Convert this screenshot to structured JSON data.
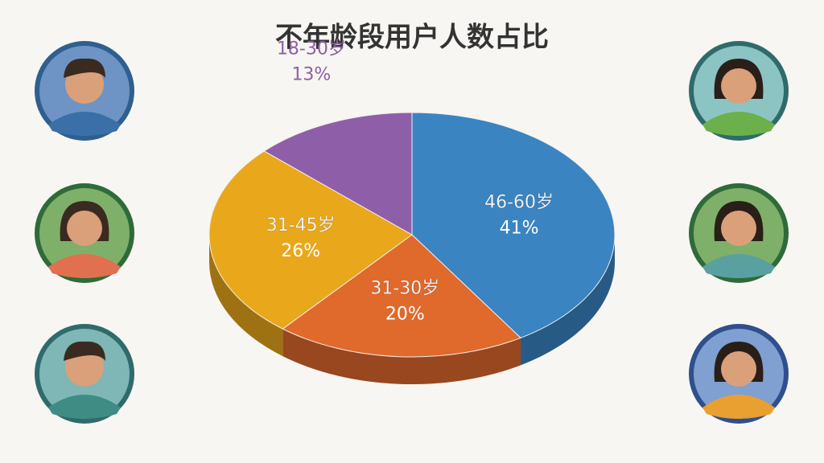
{
  "chart_data": {
    "type": "pie",
    "title": "不年龄段用户人数占比",
    "categories": [
      "46-60岁",
      "31-30岁",
      "31-45岁",
      "18-30岁"
    ],
    "values": [
      41,
      20,
      26,
      13
    ],
    "value_labels": [
      "41%",
      "20%",
      "26%",
      "13%"
    ],
    "colors": [
      "#3a84c2",
      "#e0692c",
      "#e9a81b",
      "#8f5ea8"
    ]
  }
}
